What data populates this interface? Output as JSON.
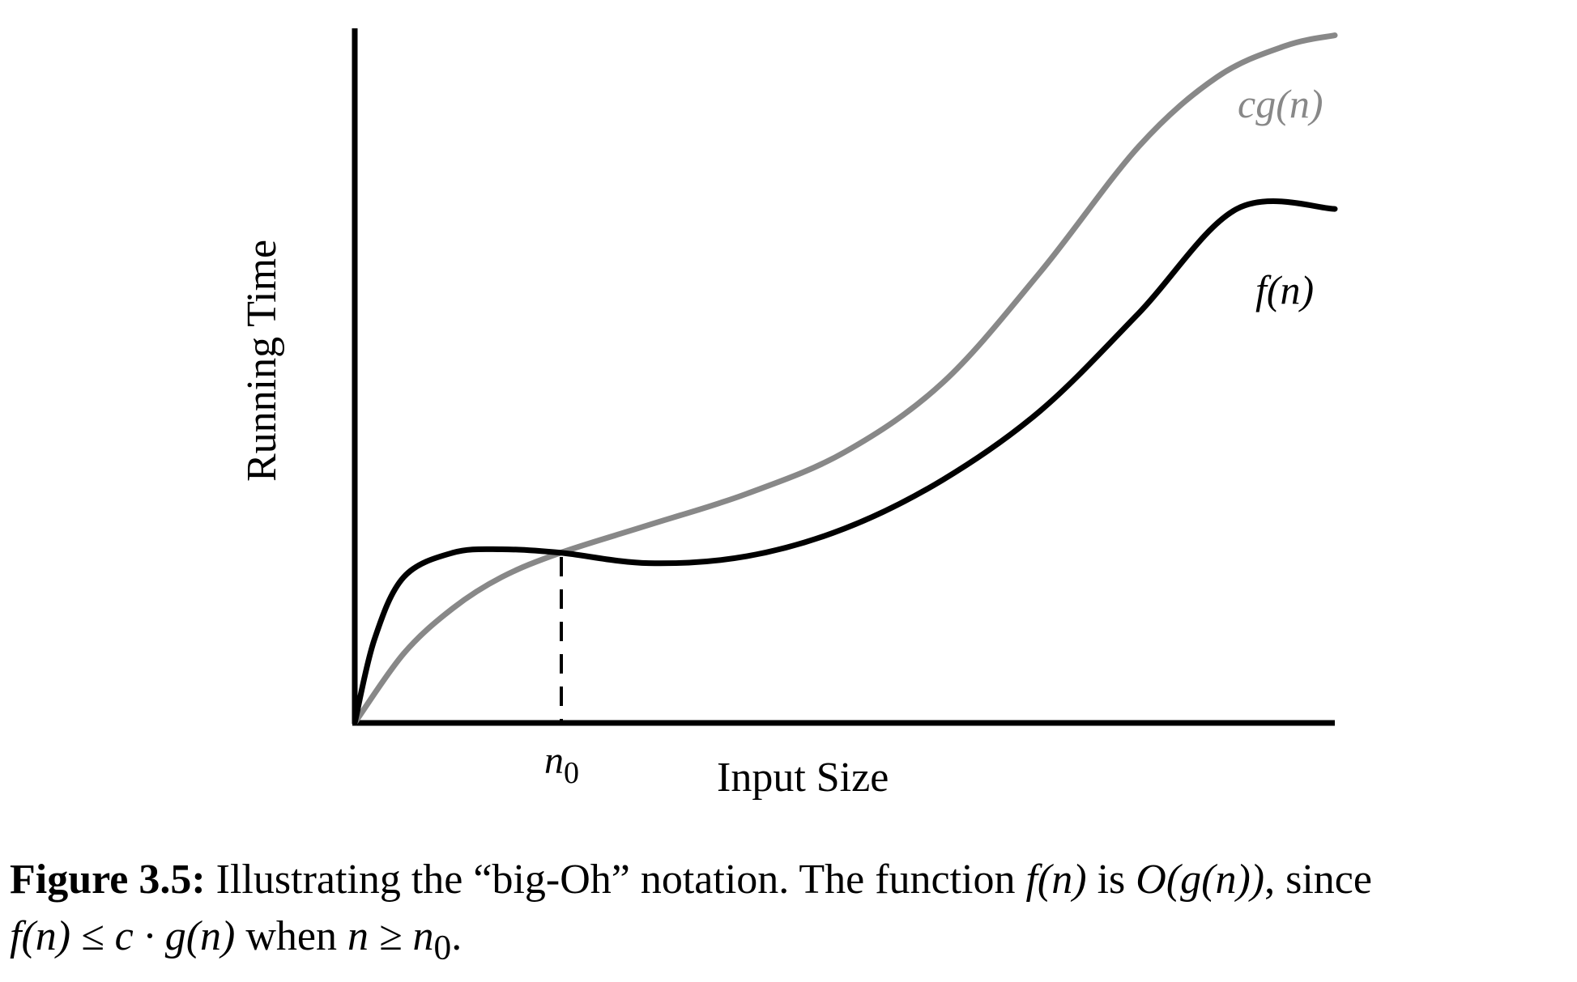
{
  "chart_data": {
    "type": "line",
    "title": "",
    "xlabel": "Input Size",
    "ylabel": "Running Time",
    "ticks": {
      "x": [
        "n0"
      ]
    },
    "xlim": [
      0,
      10
    ],
    "ylim": [
      0,
      10
    ],
    "grid": false,
    "legend": "none",
    "threshold": {
      "label": "n0",
      "x": 2.1,
      "y": 2.45,
      "style": "dashed"
    },
    "series": [
      {
        "name": "cg(n)",
        "color": "#888888",
        "points": [
          [
            0,
            0
          ],
          [
            0.5,
            1.0
          ],
          [
            1.0,
            1.65
          ],
          [
            1.5,
            2.1
          ],
          [
            2.1,
            2.45
          ],
          [
            3,
            2.85
          ],
          [
            4,
            3.3
          ],
          [
            5,
            3.9
          ],
          [
            6,
            4.9
          ],
          [
            7,
            6.5
          ],
          [
            8,
            8.3
          ],
          [
            8.8,
            9.3
          ],
          [
            9.5,
            9.75
          ],
          [
            10,
            9.9
          ]
        ]
      },
      {
        "name": "f(n)",
        "color": "#000000",
        "points": [
          [
            0,
            0
          ],
          [
            0.2,
            1.2
          ],
          [
            0.5,
            2.1
          ],
          [
            1.0,
            2.45
          ],
          [
            1.5,
            2.5
          ],
          [
            2.1,
            2.45
          ],
          [
            3,
            2.3
          ],
          [
            4,
            2.4
          ],
          [
            5,
            2.8
          ],
          [
            6,
            3.5
          ],
          [
            7,
            4.5
          ],
          [
            8,
            5.9
          ],
          [
            9,
            7.4
          ],
          [
            10,
            7.4
          ]
        ]
      }
    ]
  },
  "labels": {
    "cg": "cg(n)",
    "f": "f(n)",
    "n0": "n0"
  },
  "caption": {
    "figure": "Figure 3.5:",
    "text1": " Illustrating the “big-Oh” notation. The function ",
    "fn": "f(n)",
    "text2": " is ",
    "ogn": "O(g(n))",
    "text3": ", since",
    "line2_ineq": "f(n) ≤ c · g(n)",
    "text4": " when ",
    "line2_cond": "n ≥ n",
    "line2_sub": "0",
    "text5": "."
  }
}
